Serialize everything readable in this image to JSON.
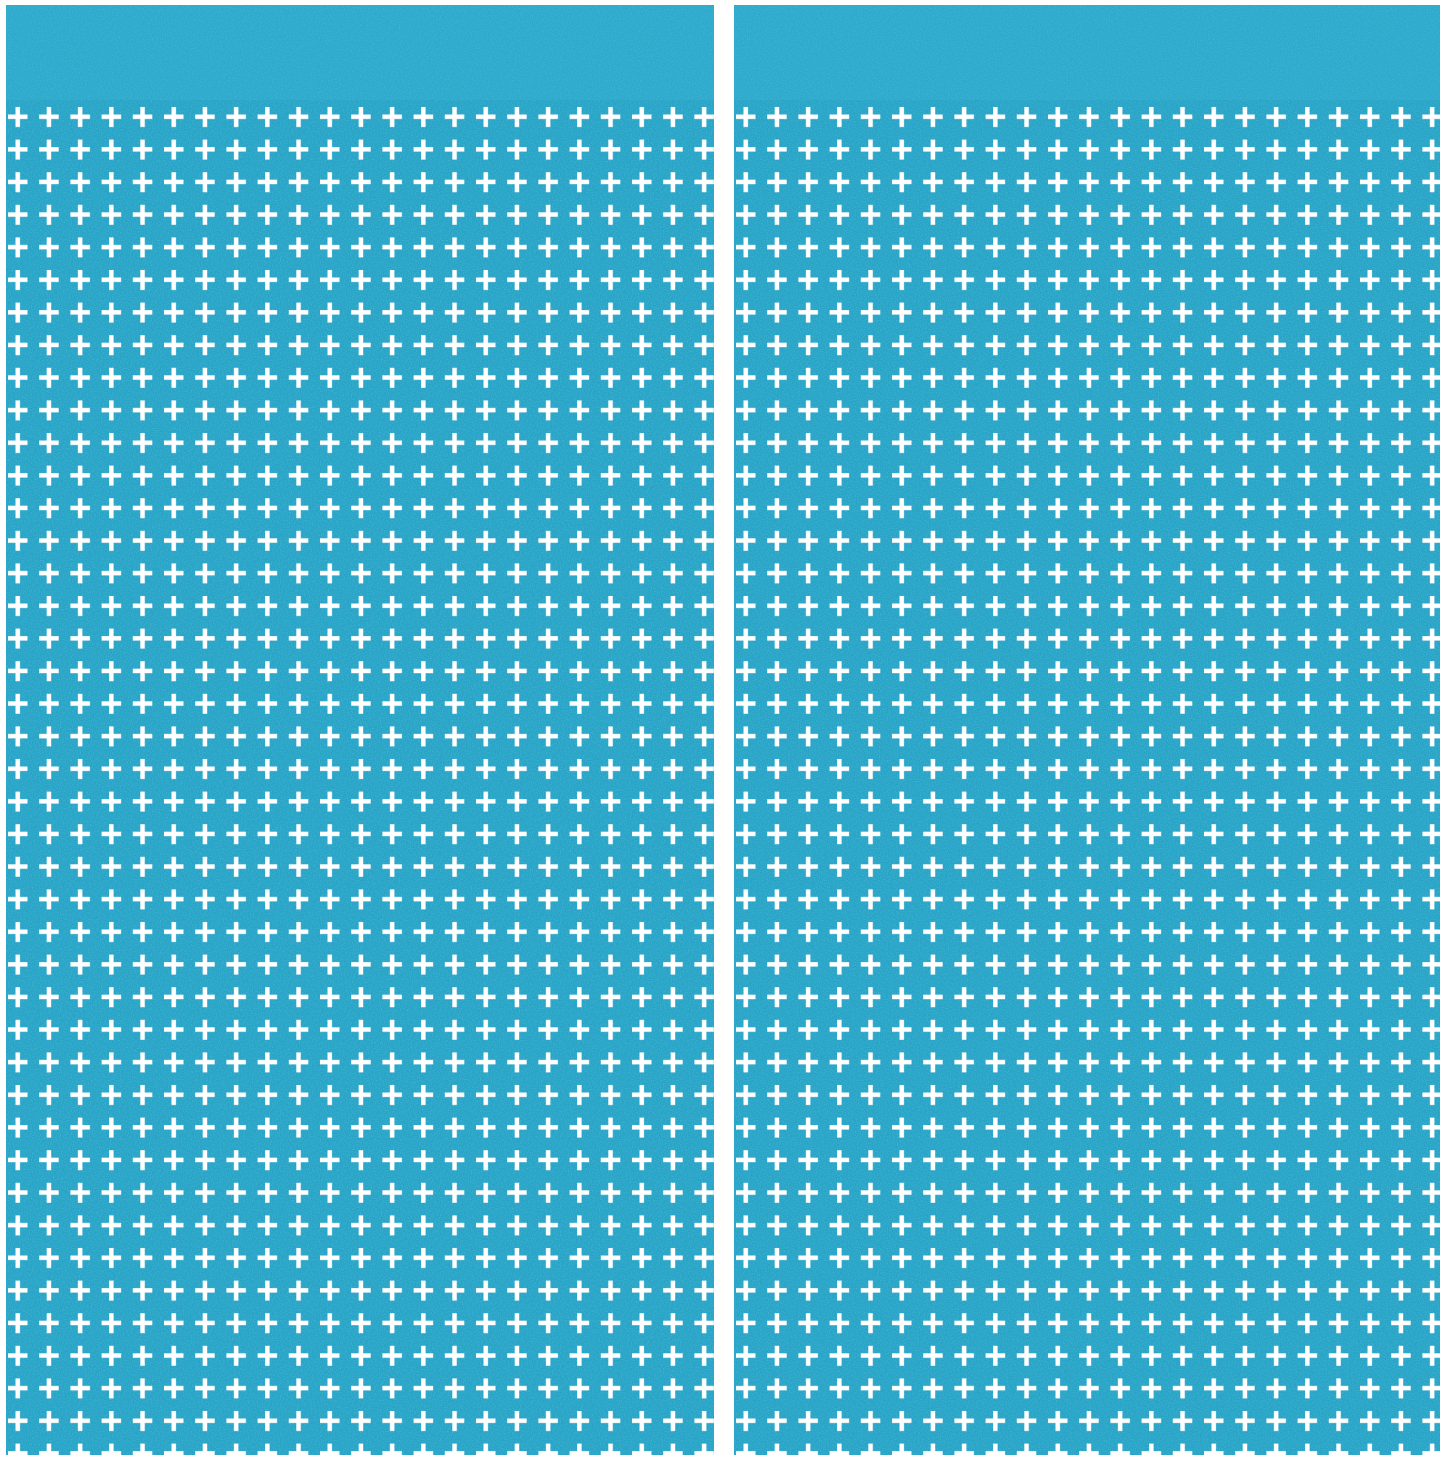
{
  "product": {
    "panel_count": 2,
    "pattern": "cross-cutout",
    "colors": {
      "foil": "#27a3c6",
      "foil_light": "#3fbbdc",
      "foil_dark": "#1a8cb0",
      "cutout": "#ffffff"
    }
  }
}
